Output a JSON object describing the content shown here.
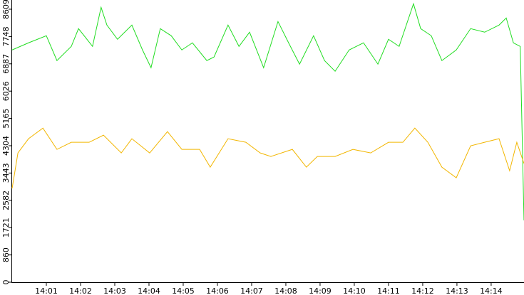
{
  "chart_data": {
    "type": "line",
    "xlim": [
      0,
      14.96
    ],
    "ylim": [
      0,
      8900
    ],
    "xticks": [
      {
        "value": 1,
        "label": "14:01"
      },
      {
        "value": 2,
        "label": "14:02"
      },
      {
        "value": 3,
        "label": "14:03"
      },
      {
        "value": 4,
        "label": "14:04"
      },
      {
        "value": 5,
        "label": "14:05"
      },
      {
        "value": 6,
        "label": "14:06"
      },
      {
        "value": 7,
        "label": "14:07"
      },
      {
        "value": 8,
        "label": "14:08"
      },
      {
        "value": 9,
        "label": "14:09"
      },
      {
        "value": 10,
        "label": "14:10"
      },
      {
        "value": 11,
        "label": "14:11"
      },
      {
        "value": 12,
        "label": "14:12"
      },
      {
        "value": 13,
        "label": "14:13"
      },
      {
        "value": 14,
        "label": "14:14"
      }
    ],
    "yticks": [
      0,
      860,
      1721,
      2582,
      3443,
      4304,
      5165,
      6026,
      6887,
      7748,
      8609
    ],
    "series": [
      {
        "color": "#22dd22",
        "x": [
          0,
          0.48,
          1.0,
          1.31,
          1.73,
          1.94,
          2.35,
          2.6,
          2.77,
          3.08,
          3.5,
          3.81,
          4.06,
          4.33,
          4.65,
          4.96,
          5.27,
          5.69,
          5.9,
          6.31,
          6.63,
          6.94,
          7.35,
          7.77,
          8.08,
          8.4,
          8.81,
          9.13,
          9.44,
          9.85,
          10.27,
          10.69,
          11.0,
          11.31,
          11.73,
          11.94,
          12.25,
          12.56,
          12.98,
          13.4,
          13.81,
          14.23,
          14.44,
          14.65,
          14.85,
          14.96
        ],
        "values": [
          7325,
          7549,
          7773,
          6989,
          7437,
          7997,
          7437,
          8669,
          8109,
          7661,
          8109,
          7325,
          6765,
          7997,
          7773,
          7325,
          7549,
          6989,
          7101,
          8109,
          7437,
          7885,
          6765,
          8221,
          7549,
          6877,
          7773,
          6989,
          6653,
          7325,
          7549,
          6877,
          7661,
          7437,
          8781,
          7997,
          7773,
          6989,
          7325,
          7997,
          7885,
          8109,
          8333,
          7549,
          7437,
          1949
        ]
      },
      {
        "color": "#f2b600",
        "x": [
          0,
          0.17,
          0.48,
          0.9,
          1.31,
          1.73,
          2.25,
          2.67,
          3.19,
          3.5,
          4.02,
          4.54,
          4.96,
          5.48,
          5.79,
          6.31,
          6.83,
          7.25,
          7.56,
          8.19,
          8.6,
          8.92,
          9.44,
          9.96,
          10.48,
          11.0,
          11.42,
          11.77,
          12.15,
          12.56,
          12.98,
          13.4,
          13.81,
          14.23,
          14.54,
          14.75,
          14.96
        ],
        "values": [
          2957,
          4077,
          4525,
          4861,
          4189,
          4413,
          4413,
          4637,
          4077,
          4525,
          4077,
          4749,
          4189,
          4189,
          3629,
          4525,
          4413,
          4077,
          3965,
          4189,
          3629,
          3965,
          3965,
          4189,
          4077,
          4413,
          4413,
          4861,
          4413,
          3629,
          3293,
          4301,
          4413,
          4525,
          3517,
          4413,
          3741
        ]
      }
    ]
  }
}
